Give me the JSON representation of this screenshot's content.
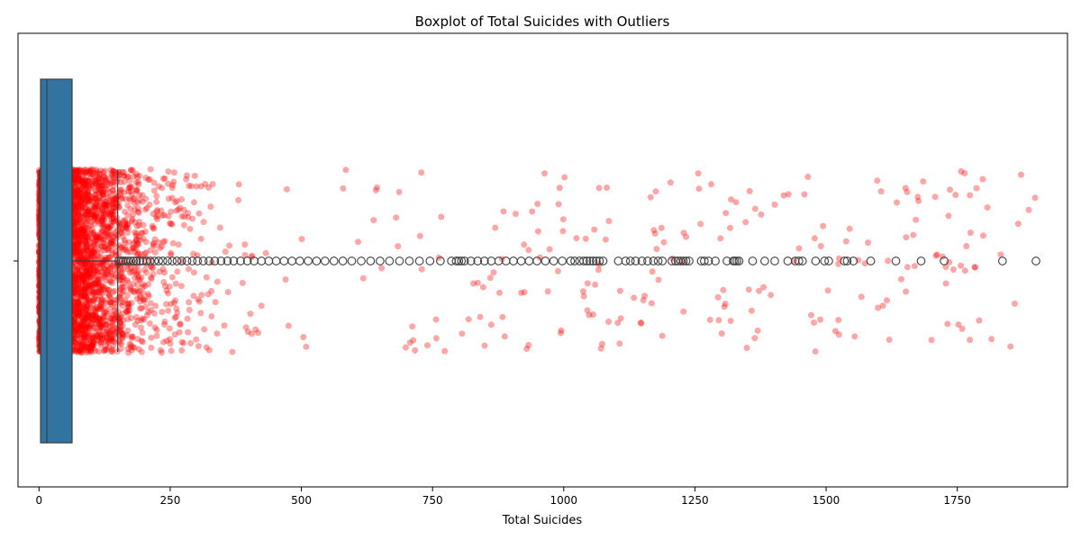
{
  "chart_data": {
    "type": "boxplot",
    "title": "Boxplot of Total Suicides with Outliers",
    "xlabel": "Total Suicides",
    "ylabel": "",
    "xlim": [
      -40,
      1960
    ],
    "x_ticks": [
      0,
      250,
      500,
      750,
      1000,
      1250,
      1500,
      1750
    ],
    "x_tick_labels": [
      "0",
      "250",
      "500",
      "750",
      "1000",
      "1250",
      "1500",
      "1750"
    ],
    "y_tick_labels": [
      ""
    ],
    "orientation": "horizontal",
    "box": {
      "whisker_low": 0,
      "q1": 3,
      "median": 15,
      "q3": 63,
      "whisker_high": 150,
      "color": "#3274a1",
      "edge_color": "#3d3d3d"
    },
    "outliers": {
      "values": [
        152,
        156,
        160,
        165,
        170,
        175,
        180,
        186,
        192,
        198,
        205,
        212,
        220,
        228,
        236,
        245,
        254,
        263,
        272,
        282,
        292,
        302,
        313,
        324,
        335,
        347,
        359,
        371,
        384,
        397,
        410,
        424,
        438,
        452,
        467,
        482,
        497,
        513,
        529,
        545,
        562,
        579,
        596,
        614,
        632,
        650,
        668,
        687,
        706,
        725,
        745,
        765,
        786,
        795,
        800,
        805,
        811,
        823,
        836,
        849,
        862,
        876,
        890,
        904,
        919,
        934,
        949,
        965,
        981,
        997,
        1013,
        1021,
        1030,
        1038,
        1044,
        1050,
        1056,
        1062,
        1068,
        1075,
        1104,
        1118,
        1127,
        1137,
        1149,
        1160,
        1171,
        1180,
        1188,
        1206,
        1213,
        1218,
        1223,
        1228,
        1233,
        1239,
        1262,
        1268,
        1276,
        1289,
        1311,
        1323,
        1326,
        1330,
        1334,
        1360,
        1383,
        1402,
        1427,
        1441,
        1448,
        1455,
        1480,
        1497,
        1505,
        1535,
        1540,
        1552,
        1585,
        1633,
        1681,
        1725,
        1836,
        1900
      ],
      "marker": "open-circle",
      "color": "#3d3d3d"
    },
    "jitter": {
      "description": "strip of all observations",
      "color": "#ff0000",
      "alpha": 0.35,
      "y_spread": [
        -0.2,
        0.2
      ]
    }
  }
}
